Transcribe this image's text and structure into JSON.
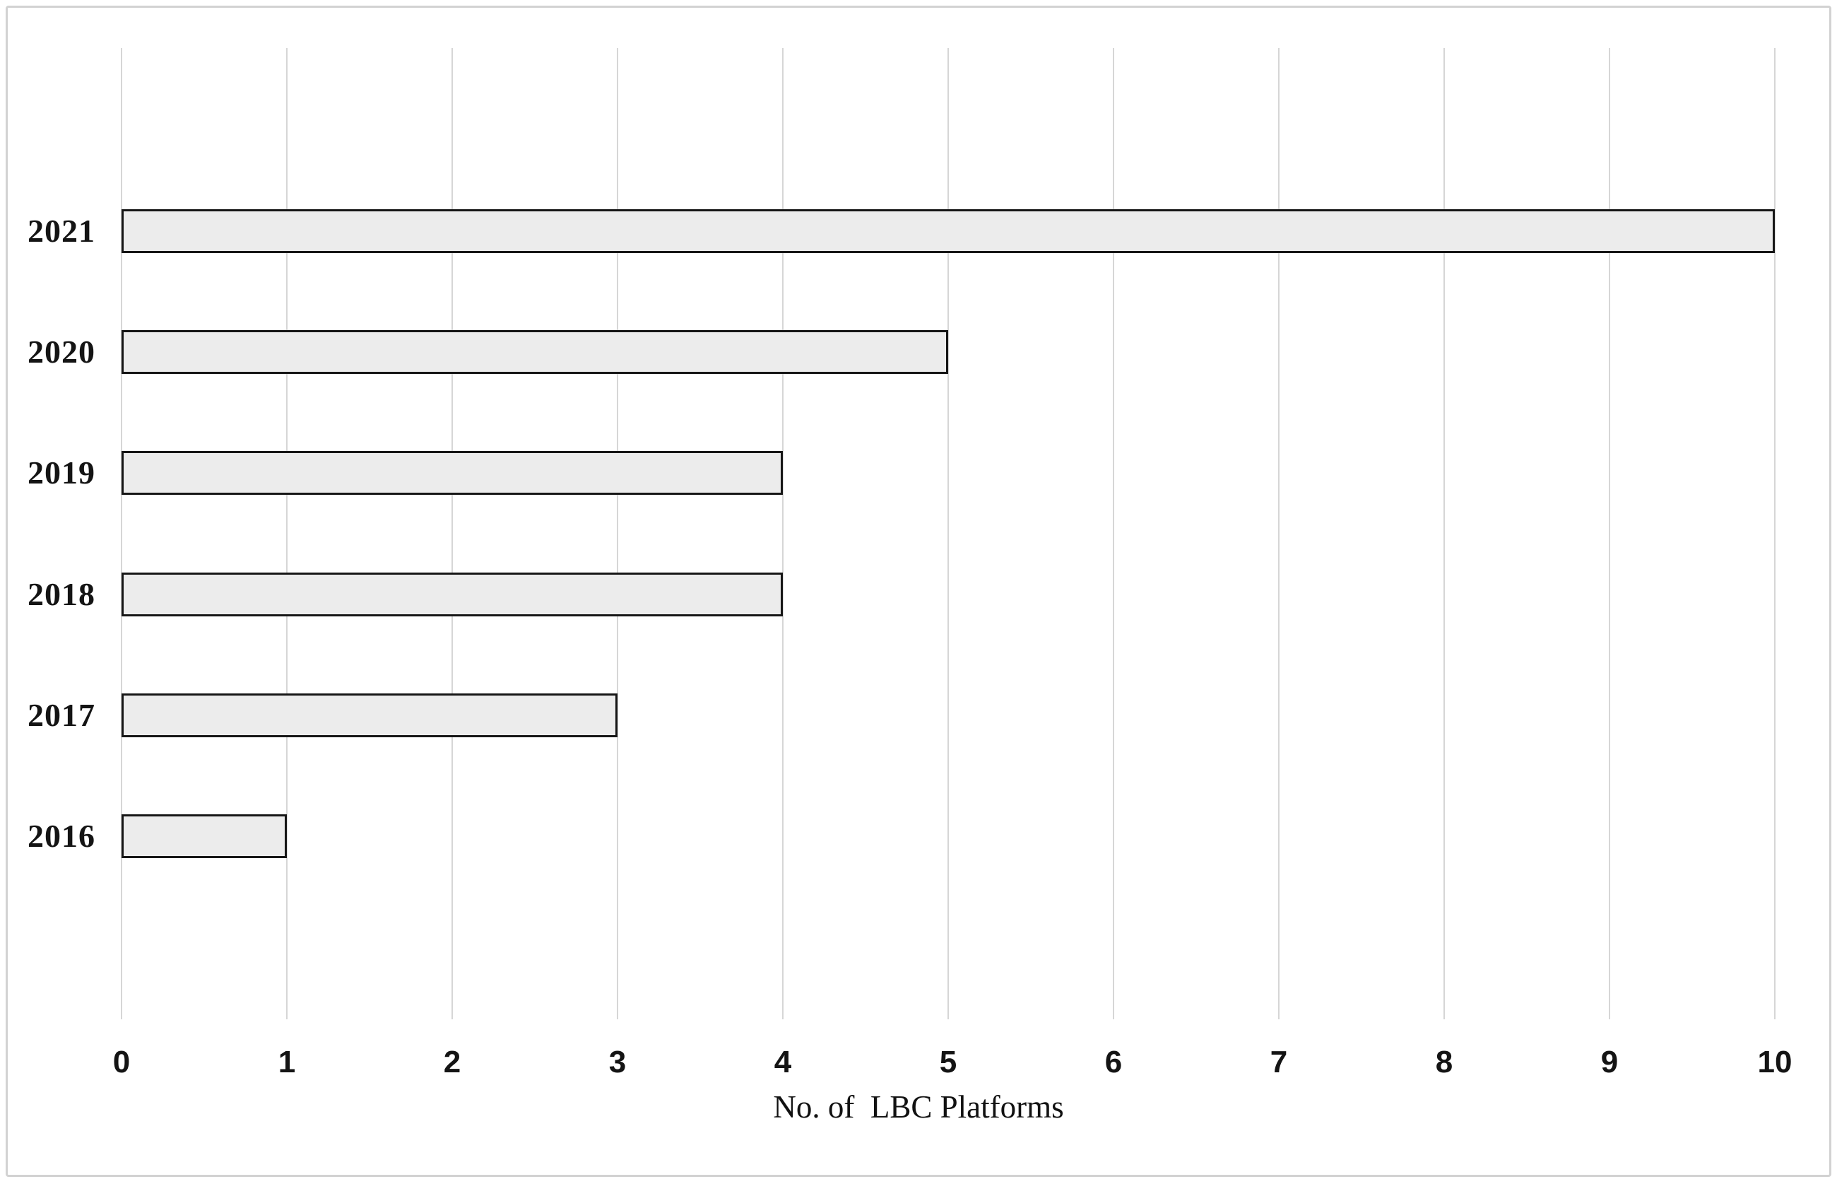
{
  "figure": {
    "xlabel": "No. of  LBC Platforms",
    "colors": {
      "background": "#ffffff",
      "frame_border": "#d2d2d2",
      "gridline": "#d6d6d6",
      "bar_fill": "#ececec",
      "bar_border": "#161616",
      "text": "#141414"
    }
  },
  "chart_data": {
    "type": "bar",
    "orientation": "horizontal",
    "title": "",
    "xlabel": "No. of  LBC Platforms",
    "ylabel": "",
    "categories": [
      "2021",
      "2020",
      "2019",
      "2018",
      "2017",
      "2016"
    ],
    "values": [
      10,
      5,
      4,
      4,
      3,
      1
    ],
    "xlim": [
      0,
      10
    ],
    "xticks": [
      0,
      1,
      2,
      3,
      4,
      5,
      6,
      7,
      8,
      9,
      10
    ],
    "grid": "vertical-gridlines-on",
    "legend": "none"
  }
}
